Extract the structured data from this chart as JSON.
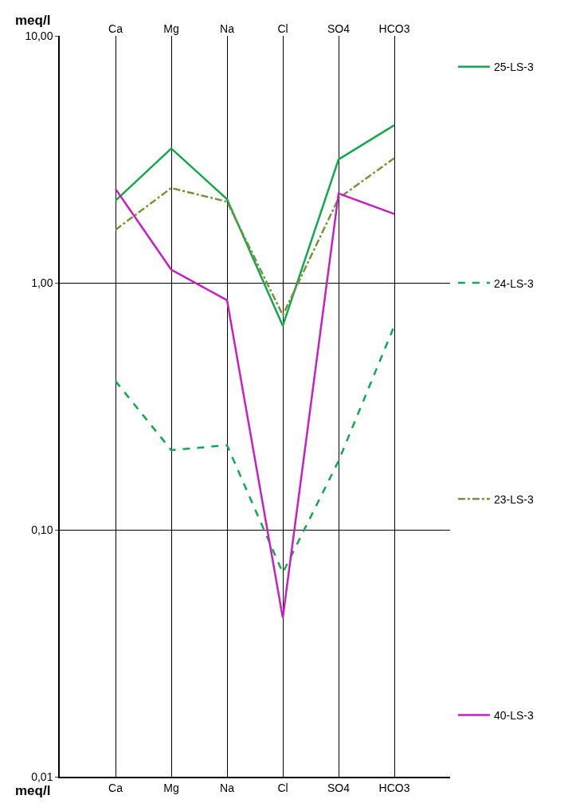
{
  "chart_data": {
    "type": "line",
    "ylabel": "meq/l",
    "categories": [
      "Ca",
      "Mg",
      "Na",
      "Cl",
      "SO4",
      "HCO3"
    ],
    "log": true,
    "ylim": [
      0.01,
      10
    ],
    "yticks": [
      {
        "value": 10,
        "label": "10,00"
      },
      {
        "value": 1,
        "label": "1,00"
      },
      {
        "value": 0.1,
        "label": "0,10"
      },
      {
        "value": 0.01,
        "label": "0,01"
      }
    ],
    "grid": true,
    "legend": "right",
    "marker": "none",
    "series": [
      {
        "name": "25-LS-3",
        "color": "#13a84f",
        "line_style": "solid",
        "values": [
          2.15,
          3.5,
          2.18,
          0.67,
          3.16,
          4.35
        ]
      },
      {
        "name": "24-LS-3",
        "color": "#13a84f",
        "line_style": "dashed",
        "values": [
          0.4,
          0.21,
          0.22,
          0.067,
          0.19,
          0.67
        ]
      },
      {
        "name": "23-LS-3",
        "color": "#77933c",
        "line_style": "dashdot",
        "values": [
          1.64,
          2.42,
          2.13,
          0.74,
          2.2,
          3.2
        ]
      },
      {
        "name": "40-LS-3",
        "color": "#c71fc1",
        "line_style": "solid",
        "values": [
          2.4,
          1.13,
          0.85,
          0.044,
          2.3,
          1.9
        ]
      }
    ]
  }
}
